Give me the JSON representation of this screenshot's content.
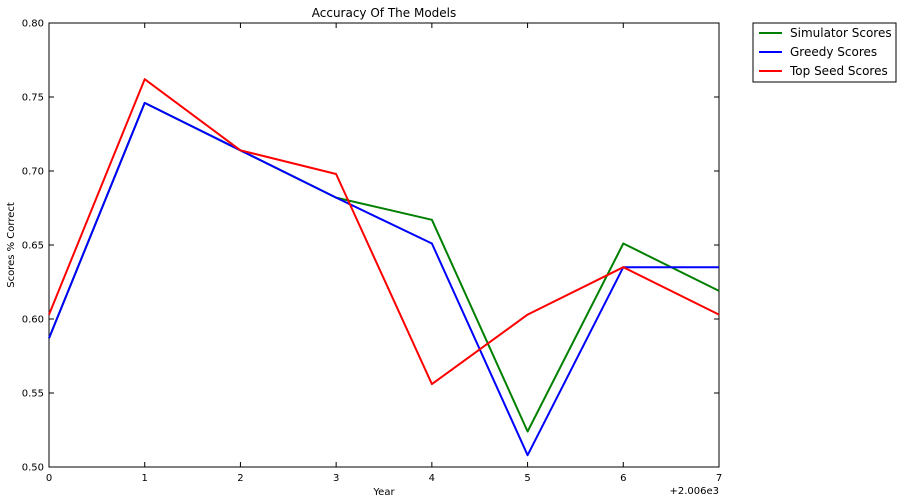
{
  "chart_data": {
    "type": "line",
    "title": "Accuracy Of The Models",
    "xlabel": "Year",
    "ylabel": "Scores % Correct",
    "x_offset_label": "+2.006e3",
    "x": [
      0,
      1,
      2,
      3,
      4,
      5,
      6,
      7
    ],
    "xlim": [
      0,
      7
    ],
    "ylim": [
      0.5,
      0.8
    ],
    "x_ticks": [
      "0",
      "1",
      "2",
      "3",
      "4",
      "5",
      "6",
      "7"
    ],
    "y_ticks": [
      "0.50",
      "0.55",
      "0.60",
      "0.65",
      "0.70",
      "0.75",
      "0.80"
    ],
    "grid": false,
    "legend_position": "outside-top-right",
    "series": [
      {
        "name": "Simulator Scores",
        "color": "#008000",
        "values": [
          0.587,
          0.746,
          0.714,
          0.682,
          0.667,
          0.524,
          0.651,
          0.619
        ]
      },
      {
        "name": "Greedy Scores",
        "color": "#0000ff",
        "values": [
          0.587,
          0.746,
          0.714,
          0.682,
          0.651,
          0.508,
          0.635,
          0.635
        ]
      },
      {
        "name": "Top Seed Scores",
        "color": "#ff0000",
        "values": [
          0.603,
          0.762,
          0.714,
          0.698,
          0.556,
          0.603,
          0.635,
          0.603
        ]
      }
    ]
  }
}
